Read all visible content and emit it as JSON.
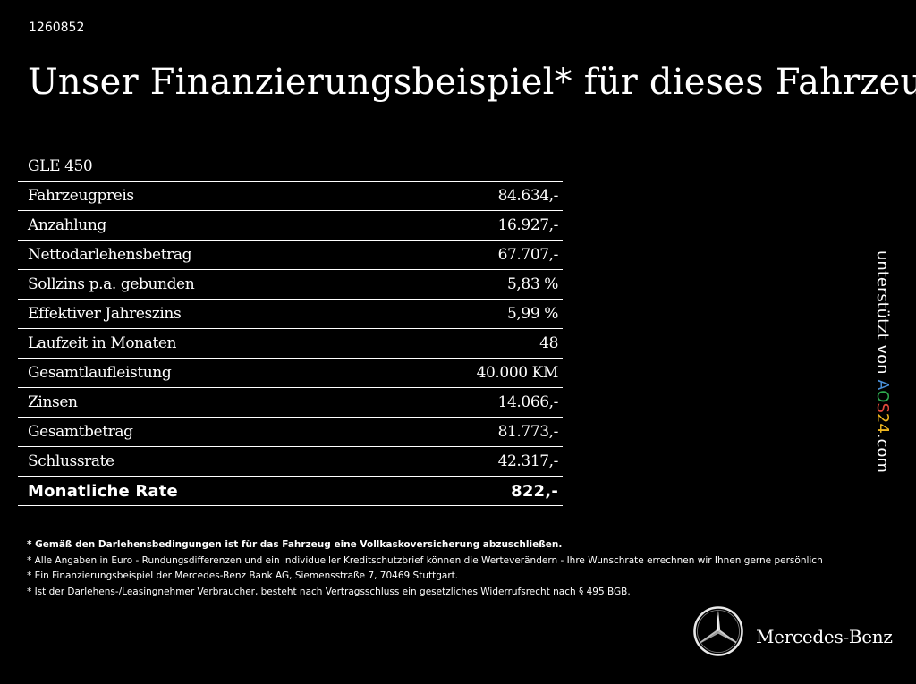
{
  "ad_id": "1260852",
  "headline": "Unser Finanzierungsbeispiel* für dieses Fahrzeug:",
  "model": "GLE 450",
  "rows": [
    {
      "label": "Fahrzeugpreis",
      "value": "84.634,-"
    },
    {
      "label": "Anzahlung",
      "value": "16.927,-"
    },
    {
      "label": "Nettodarlehensbetrag",
      "value": "67.707,-"
    },
    {
      "label": "Sollzins p.a. gebunden",
      "value": "5,83 %"
    },
    {
      "label": "Effektiver Jahreszins",
      "value": "5,99 %"
    },
    {
      "label": "Laufzeit in Monaten",
      "value": "48"
    },
    {
      "label": "Gesamtlaufleistung",
      "value": "40.000 KM"
    },
    {
      "label": "Zinsen",
      "value": "14.066,-"
    },
    {
      "label": "Gesamtbetrag",
      "value": "81.773,-"
    },
    {
      "label": "Schlussrate",
      "value": "42.317,-"
    }
  ],
  "total": {
    "label": "Monatliche Rate",
    "value": "822,-"
  },
  "footnotes": [
    "* Gemäß den Darlehensbedingungen ist für das Fahrzeug eine Vollkaskoversicherung abzuschließen.",
    "* Alle Angaben in Euro - Rundungsdifferenzen und ein individueller Kreditschutzbrief können die Werteverändern - Ihre Wunschrate errechnen wir Ihnen gerne persönlich",
    "* Ein Finanzierungsbeispiel der Mercedes-Benz Bank AG, Siemensstraße 7, 70469 Stuttgart.",
    "* Ist der Darlehens-/Leasingnehmer Verbraucher, besteht nach Vertragsschluss ein gesetzliches Widerrufsrecht nach § 495 BGB."
  ],
  "side_badge": {
    "prefix": "unterstützt von ",
    "letters": [
      "A",
      "O",
      "S",
      "2",
      "4"
    ],
    "letter_colors": [
      "#4a90d9",
      "#2eaa4f",
      "#e34a3b",
      "#f1b81f",
      "#f1b81f"
    ],
    "suffix": ".com"
  },
  "brand": {
    "name": "Mercedes-Benz",
    "logo_icon": "mercedes-star-icon"
  }
}
